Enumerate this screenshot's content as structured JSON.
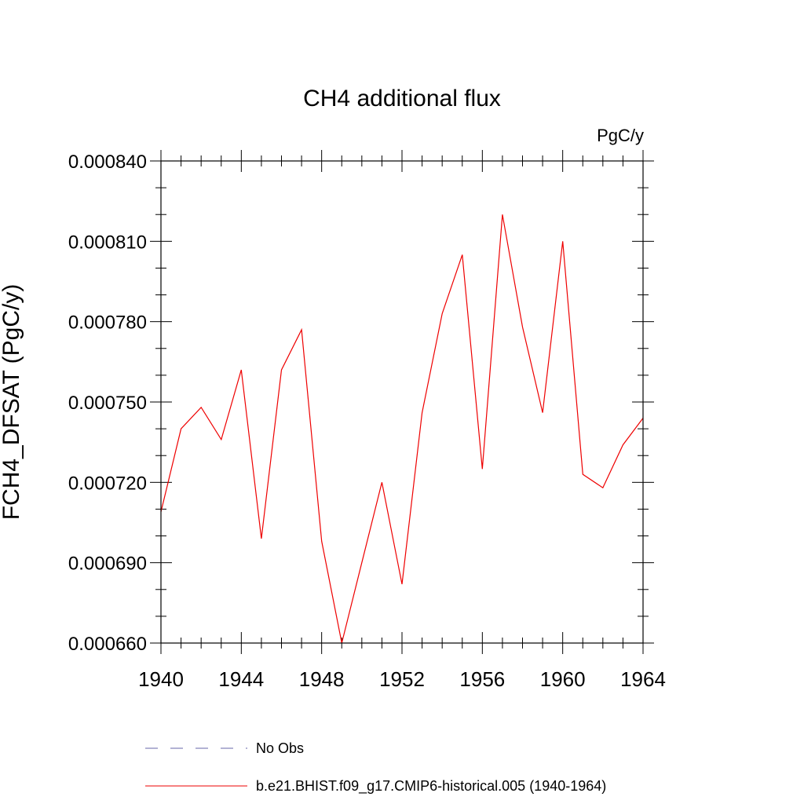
{
  "chart_data": {
    "type": "line",
    "title": "CH4 additional flux",
    "units_label": "PgC/y",
    "xlabel": "",
    "ylabel": "FCH4_DFSAT  (PgC/y)",
    "xlim": [
      1940,
      1964
    ],
    "ylim": [
      0.00066,
      0.00084
    ],
    "x_ticks": [
      1940,
      1944,
      1948,
      1952,
      1956,
      1960,
      1964
    ],
    "x_tick_labels": [
      "1940",
      "1944",
      "1948",
      "1952",
      "1956",
      "1960",
      "1964"
    ],
    "y_ticks": [
      0.00066,
      0.00069,
      0.00072,
      0.00075,
      0.00078,
      0.00081,
      0.00084
    ],
    "y_tick_labels": [
      "0.000660",
      "0.000690",
      "0.000720",
      "0.000750",
      "0.000780",
      "0.000810",
      "0.000840"
    ],
    "grid": false,
    "legend_position": "bottom",
    "legend": [
      {
        "label": "No Obs",
        "color": "#6666aa",
        "style": "dashed"
      },
      {
        "label": "b.e21.BHIST.f09_g17.CMIP6-historical.005 (1940-1964)",
        "color": "#ee0000",
        "style": "solid"
      }
    ],
    "series": [
      {
        "name": "b.e21.BHIST.f09_g17.CMIP6-historical.005 (1940-1964)",
        "color": "#ee0000",
        "x": [
          1940,
          1941,
          1942,
          1943,
          1944,
          1945,
          1946,
          1947,
          1948,
          1949,
          1950,
          1951,
          1952,
          1953,
          1954,
          1955,
          1956,
          1957,
          1958,
          1959,
          1960,
          1961,
          1962,
          1963,
          1964
        ],
        "y": [
          0.000709,
          0.00074,
          0.000748,
          0.000736,
          0.000762,
          0.000699,
          0.000762,
          0.000777,
          0.000698,
          0.00066,
          0.00069,
          0.00072,
          0.000682,
          0.000746,
          0.000783,
          0.000805,
          0.000725,
          0.00082,
          0.000778,
          0.000746,
          0.00081,
          0.000723,
          0.000718,
          0.000734,
          0.000744
        ]
      }
    ]
  }
}
